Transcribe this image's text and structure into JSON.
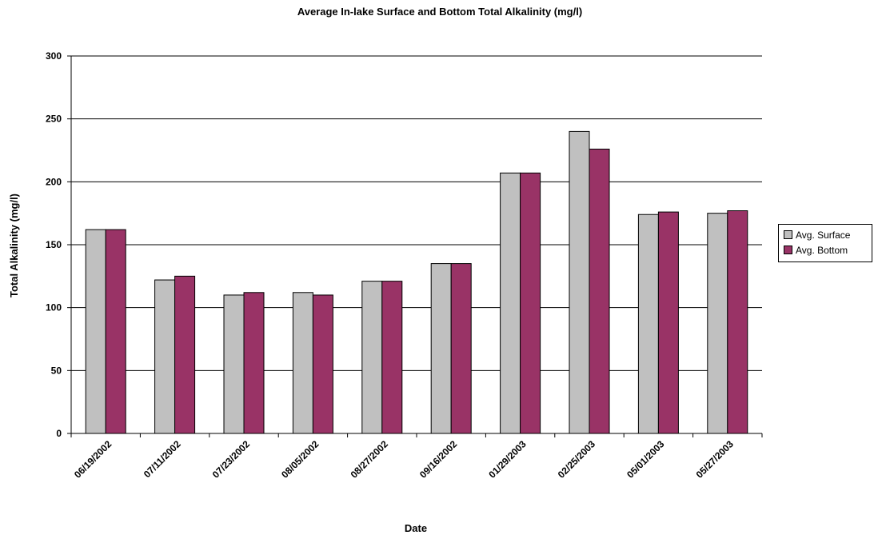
{
  "chart_data": {
    "type": "bar",
    "title": "Average In-lake Surface and Bottom Total Alkalinity (mg/l)",
    "xlabel": "Date",
    "ylabel": "Total Alkalinity (mg/l)",
    "ylim": [
      0,
      300
    ],
    "yticks": [
      0,
      50,
      100,
      150,
      200,
      250,
      300
    ],
    "grid": true,
    "legend_position": "right",
    "categories": [
      "06/19/2002",
      "07/11/2002",
      "07/23/2002",
      "08/05/2002",
      "08/27/2002",
      "09/16/2002",
      "01/29/2003",
      "02/25/2003",
      "05/01/2003",
      "05/27/2003"
    ],
    "series": [
      {
        "name": "Avg. Surface",
        "color": "#c0c0c0",
        "values": [
          162,
          122,
          110,
          112,
          121,
          135,
          207,
          240,
          174,
          175
        ]
      },
      {
        "name": "Avg. Bottom",
        "color": "#993366",
        "values": [
          162,
          125,
          112,
          110,
          121,
          135,
          207,
          226,
          176,
          177
        ]
      }
    ]
  }
}
